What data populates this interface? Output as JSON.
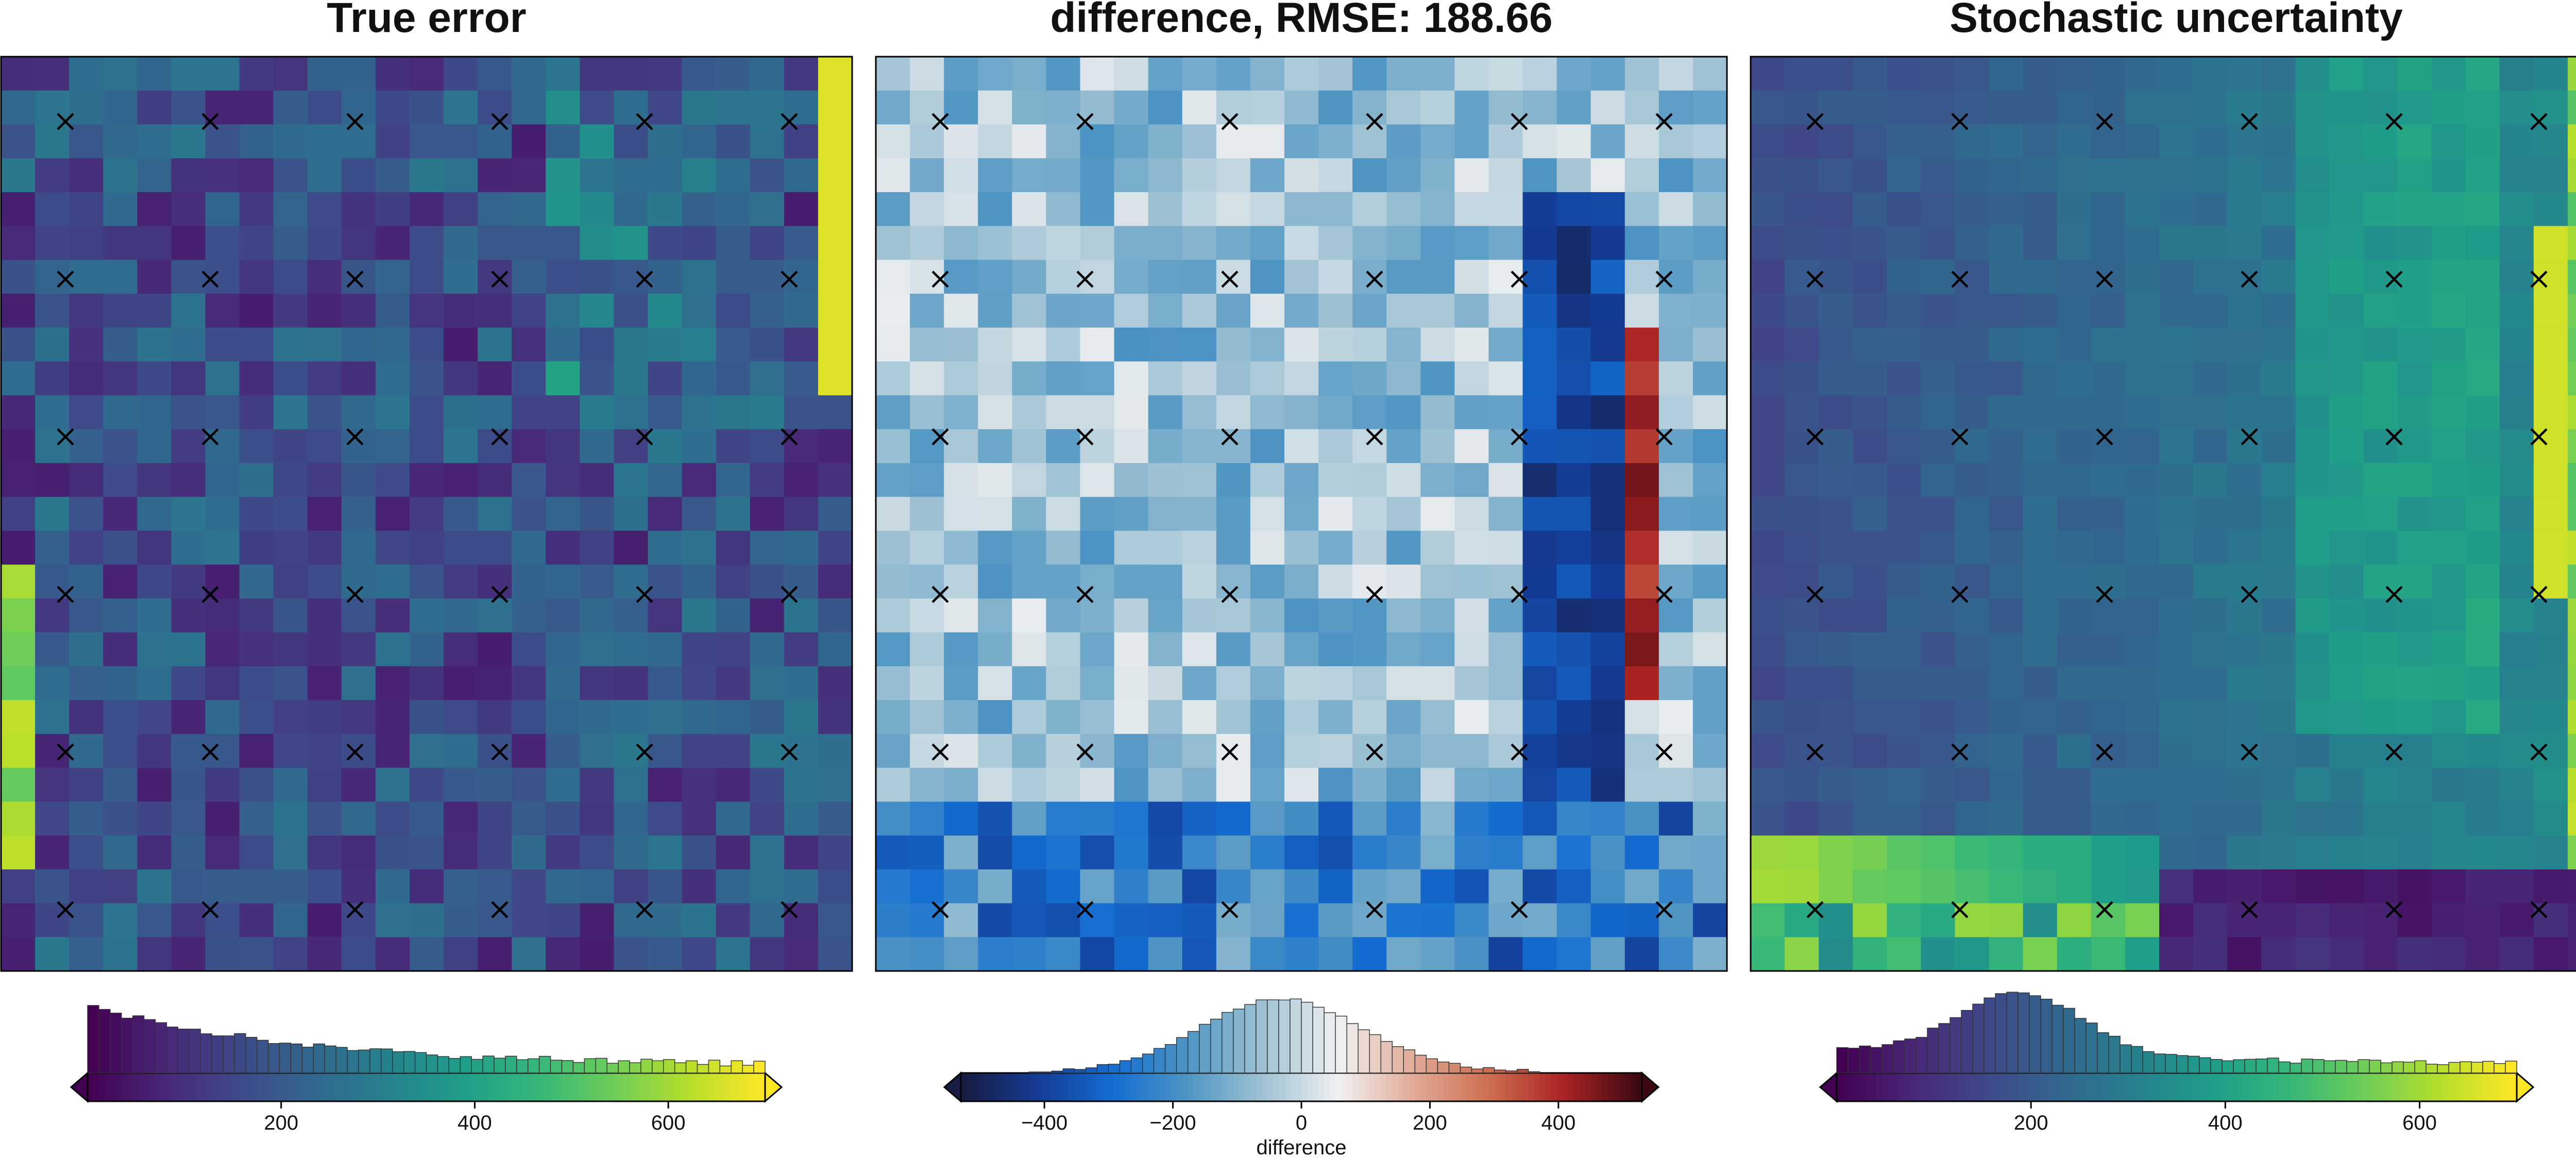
{
  "figure": {
    "background": "#ffffff"
  },
  "chart_data": [
    {
      "type": "heatmap",
      "title": "True error",
      "colormap": "viridis",
      "grid": {
        "rows": 27,
        "cols": 25
      },
      "markers": {
        "symbol": "×",
        "rows": 6,
        "cols": 6
      },
      "colorbar": {
        "range": [
          0,
          700
        ],
        "ticks": [
          200,
          400,
          600
        ],
        "extend": "both",
        "label": "",
        "histogram": true
      }
    },
    {
      "type": "heatmap",
      "title": "difference, RMSE: 188.66",
      "colormap": "balance",
      "grid": {
        "rows": 27,
        "cols": 25
      },
      "markers": {
        "symbol": "×",
        "rows": 6,
        "cols": 6
      },
      "colorbar": {
        "range": [
          -530,
          530
        ],
        "ticks": [
          -400,
          -200,
          0,
          200,
          400
        ],
        "extend": "both",
        "label": "difference",
        "histogram": true
      }
    },
    {
      "type": "heatmap",
      "title": "Stochastic uncertainty",
      "colormap": "viridis",
      "grid": {
        "rows": 27,
        "cols": 25
      },
      "markers": {
        "symbol": "×",
        "rows": 6,
        "cols": 6
      },
      "colorbar": {
        "range": [
          0,
          700
        ],
        "ticks": [
          200,
          400,
          600
        ],
        "extend": "both",
        "label": "",
        "histogram": true
      }
    }
  ]
}
